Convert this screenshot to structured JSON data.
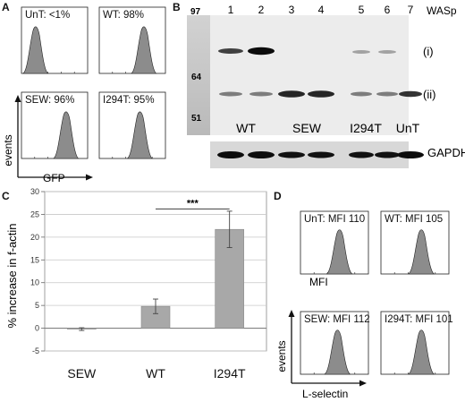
{
  "panel_labels": {
    "a": "A",
    "b": "B",
    "c": "C",
    "d": "D"
  },
  "panel_a": {
    "plots": [
      {
        "label": "UnT: <1%"
      },
      {
        "label": "WT: 98%"
      },
      {
        "label": "SEW: 96%"
      },
      {
        "label": "I294T: 95%"
      }
    ],
    "y_arrow_label": "events",
    "x_arrow_label": "GFP",
    "fill_color": "#8c8c8c"
  },
  "panel_b": {
    "ladder": [
      "97",
      "64",
      "51"
    ],
    "lanes": [
      "1",
      "2",
      "3",
      "4",
      "5",
      "6",
      "7"
    ],
    "protein_label": "WASp",
    "band_labels": [
      "(i)",
      "(ii)"
    ],
    "groups": [
      "WT",
      "SEW",
      "I294T",
      "UnT"
    ],
    "loading_control": "GAPDH"
  },
  "panel_c": {
    "significance": "***",
    "chart_data": {
      "type": "bar",
      "categories": [
        "SEW",
        "WT",
        "I294T"
      ],
      "values": [
        -0.2,
        4.8,
        21.7
      ],
      "errors": [
        0.3,
        1.6,
        4.0
      ],
      "ylabel": "% increase in f-actin",
      "ylim": [
        -5,
        30
      ],
      "yticks": [
        "-5",
        "0",
        "5",
        "10",
        "15",
        "20",
        "25",
        "30"
      ],
      "grid": true,
      "bar_color": "#a8a8a8"
    }
  },
  "panel_d": {
    "plots": [
      {
        "label": "UnT: MFI 110"
      },
      {
        "label": "WT: MFI 105"
      },
      {
        "label": "SEW: MFI 112"
      },
      {
        "label": "I294T: MFI 101"
      }
    ],
    "mfi_label": "MFI",
    "y_arrow_label": "events",
    "x_arrow_label": "L-selectin",
    "fill_color": "#8c8c8c"
  }
}
